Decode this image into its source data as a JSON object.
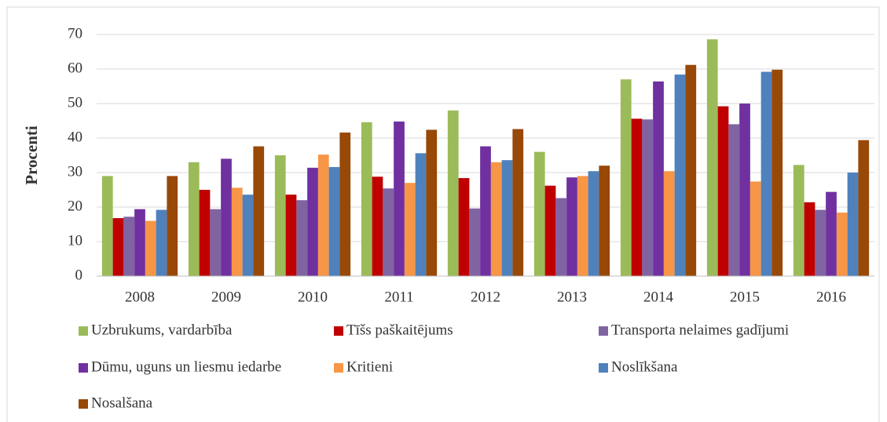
{
  "chart_data": {
    "type": "bar",
    "y_label": "Procenti",
    "categories": [
      "2008",
      "2009",
      "2010",
      "2011",
      "2012",
      "2013",
      "2014",
      "2015",
      "2016"
    ],
    "series": [
      {
        "name": "Uzbrukums, vardarbība",
        "color": "#9bbb59",
        "values": [
          29,
          33,
          35,
          44.6,
          48,
          36,
          57,
          68.6,
          32.2
        ]
      },
      {
        "name": "Tīšs paškaitējums",
        "color": "#c00000",
        "values": [
          16.8,
          25,
          23.6,
          28.8,
          28.4,
          26.2,
          45.6,
          49.2,
          21.4
        ]
      },
      {
        "name": "Transporta nelaimes gadījumi",
        "color": "#8064a2",
        "values": [
          17.2,
          19.4,
          22,
          25.4,
          19.6,
          22.6,
          45.4,
          44,
          19.2
        ]
      },
      {
        "name": "Dūmu, uguns un liesmu iedarbe",
        "color": "#7030a0",
        "values": [
          19.4,
          34,
          31.4,
          44.8,
          37.6,
          28.6,
          56.4,
          50,
          24.4
        ]
      },
      {
        "name": "Kritieni",
        "color": "#f79646",
        "values": [
          16,
          25.6,
          35.2,
          27,
          33,
          29,
          30.4,
          27.4,
          18.4
        ]
      },
      {
        "name": "Noslīkšana",
        "color": "#4f81bd",
        "values": [
          19.2,
          23.6,
          31.6,
          35.6,
          33.6,
          30.4,
          58.4,
          59.2,
          30
        ]
      },
      {
        "name": "Nosalšana",
        "color": "#984807",
        "values": [
          29,
          37.6,
          41.6,
          42.4,
          42.6,
          32,
          61.2,
          59.8,
          39.4
        ]
      }
    ],
    "ylim": [
      0,
      70
    ],
    "yticks": [
      0,
      10,
      20,
      30,
      40,
      50,
      60,
      70
    ],
    "grid": true,
    "legend": "bottom"
  }
}
